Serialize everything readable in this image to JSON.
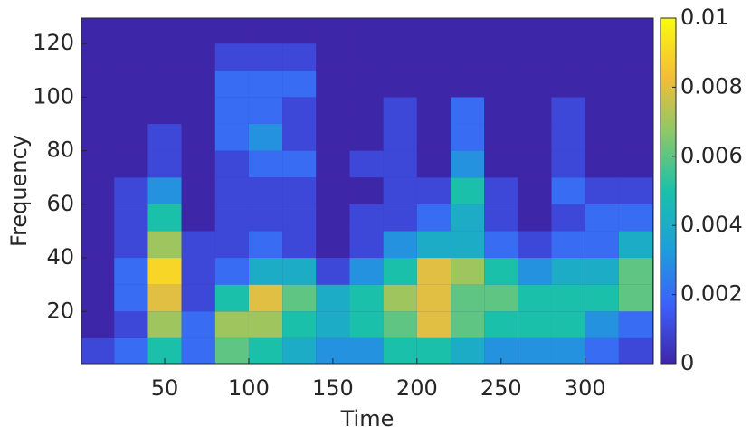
{
  "chart_data": {
    "type": "heatmap",
    "x_label": "Time",
    "y_label": "Frequency",
    "x": [
      10,
      30,
      50,
      70,
      90,
      110,
      130,
      150,
      170,
      190,
      210,
      230,
      250,
      270,
      290,
      310,
      330
    ],
    "y": [
      5,
      15,
      25,
      35,
      45,
      55,
      65,
      75,
      85,
      95,
      105,
      115,
      125
    ],
    "z": [
      [
        0.001,
        0.002,
        0.005,
        0.002,
        0.006,
        0.005,
        0.004,
        0.003,
        0.003,
        0.005,
        0.005,
        0.004,
        0.003,
        0.003,
        0.003,
        0.002,
        0.001
      ],
      [
        0,
        0.001,
        0.007,
        0.002,
        0.007,
        0.007,
        0.005,
        0.004,
        0.005,
        0.006,
        0.008,
        0.006,
        0.005,
        0.005,
        0.005,
        0.003,
        0.002
      ],
      [
        0,
        0.002,
        0.008,
        0.001,
        0.005,
        0.008,
        0.006,
        0.004,
        0.005,
        0.007,
        0.008,
        0.006,
        0.006,
        0.005,
        0.005,
        0.005,
        0.006
      ],
      [
        0,
        0.002,
        0.009,
        0.001,
        0.002,
        0.004,
        0.004,
        0.001,
        0.003,
        0.005,
        0.008,
        0.007,
        0.005,
        0.003,
        0.004,
        0.004,
        0.006
      ],
      [
        0,
        0.001,
        0.007,
        0.001,
        0.001,
        0.002,
        0.001,
        0,
        0.001,
        0.003,
        0.004,
        0.004,
        0.002,
        0.001,
        0.002,
        0.002,
        0.004
      ],
      [
        0,
        0.001,
        0.005,
        0,
        0.001,
        0.001,
        0.001,
        0,
        0.001,
        0.001,
        0.002,
        0.004,
        0.001,
        0,
        0.001,
        0.002,
        0.002
      ],
      [
        0,
        0.001,
        0.003,
        0,
        0.001,
        0.001,
        0.001,
        0,
        0,
        0.001,
        0.001,
        0.005,
        0.001,
        0,
        0.002,
        0.001,
        0.001
      ],
      [
        0,
        0,
        0.001,
        0,
        0.001,
        0.002,
        0.002,
        0,
        0.001,
        0.001,
        0,
        0.003,
        0,
        0,
        0.001,
        0,
        0
      ],
      [
        0,
        0,
        0.001,
        0,
        0.002,
        0.003,
        0.001,
        0,
        0,
        0.001,
        0,
        0.002,
        0,
        0,
        0.001,
        0,
        0
      ],
      [
        0,
        0,
        0,
        0,
        0.002,
        0.002,
        0.001,
        0,
        0,
        0.001,
        0,
        0.002,
        0,
        0,
        0.001,
        0,
        0
      ],
      [
        0,
        0,
        0,
        0,
        0.002,
        0.002,
        0.002,
        0,
        0,
        0,
        0,
        0,
        0,
        0,
        0,
        0,
        0
      ],
      [
        0,
        0,
        0,
        0,
        0.001,
        0.001,
        0.001,
        0,
        0,
        0,
        0,
        0,
        0,
        0,
        0,
        0,
        0
      ],
      [
        0,
        0,
        0,
        0,
        0,
        0,
        0,
        0,
        0,
        0,
        0,
        0,
        0,
        0,
        0,
        0,
        0
      ]
    ],
    "xlim": [
      0.5,
      340.5
    ],
    "ylim": [
      0.5,
      129.5
    ],
    "xticks": [
      50,
      100,
      150,
      200,
      250,
      300
    ],
    "yticks": [
      20,
      40,
      60,
      80,
      100,
      120
    ],
    "clim": [
      0,
      0.01
    ],
    "cticks": [
      0,
      0.002,
      0.004,
      0.006,
      0.008,
      0.01
    ],
    "colormap": [
      "#3e26a8",
      "#3d5ff9",
      "#1e9fd9",
      "#1bc0aa",
      "#8ac868",
      "#f5bd38",
      "#f9fb0e"
    ]
  }
}
